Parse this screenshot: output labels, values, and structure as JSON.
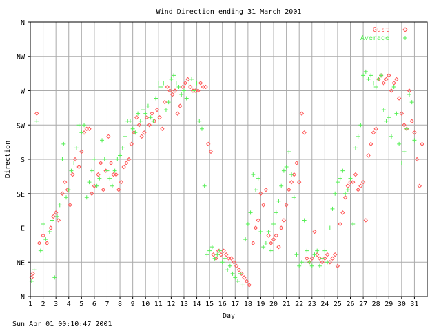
{
  "footer_timestamp": "Sun Apr 01 00:10:47 2001",
  "chart_data": {
    "type": "scatter",
    "title": "Wind Direction ending 31 March 2001",
    "xlabel": "Day",
    "ylabel": "Direction",
    "xlim": [
      1,
      32
    ],
    "ylim": [
      0,
      360
    ],
    "x_ticks": [
      "1",
      "2",
      "3",
      "4",
      "5",
      "6",
      "7",
      "8",
      "9",
      "10",
      "11",
      "12",
      "13",
      "14",
      "15",
      "16",
      "17",
      "18",
      "19",
      "20",
      "21",
      "22",
      "23",
      "24",
      "25",
      "26",
      "27",
      "28",
      "29",
      "30",
      "31"
    ],
    "y_ticks": [
      {
        "label": "N",
        "value": 0
      },
      {
        "label": "NE",
        "value": 45
      },
      {
        "label": "E",
        "value": 90
      },
      {
        "label": "SE",
        "value": 135
      },
      {
        "label": "S",
        "value": 180
      },
      {
        "label": "SW",
        "value": 225
      },
      {
        "label": "W",
        "value": 270
      },
      {
        "label": "NW",
        "value": 315
      },
      {
        "label": "N",
        "value": 360
      }
    ],
    "grid": true,
    "legend_position": "top-right",
    "colors": {
      "gust": "#ff5555",
      "average": "#55ee55",
      "grid": "#aaaaaa",
      "axis": "#000000"
    },
    "series": [
      {
        "name": "Gust",
        "marker": "diamond",
        "color": "#ff5555",
        "points": [
          [
            1.1,
            25
          ],
          [
            1.2,
            30
          ],
          [
            1.5,
            240
          ],
          [
            1.7,
            70
          ],
          [
            2.0,
            80
          ],
          [
            2.3,
            70
          ],
          [
            2.6,
            90
          ],
          [
            2.8,
            105
          ],
          [
            3.0,
            110
          ],
          [
            3.2,
            100
          ],
          [
            3.5,
            135
          ],
          [
            3.7,
            150
          ],
          [
            3.9,
            140
          ],
          [
            4.1,
            120
          ],
          [
            4.3,
            160
          ],
          [
            4.5,
            180
          ],
          [
            4.8,
            170
          ],
          [
            5.0,
            190
          ],
          [
            5.2,
            215
          ],
          [
            5.4,
            220
          ],
          [
            5.6,
            220
          ],
          [
            5.8,
            135
          ],
          [
            6.0,
            145
          ],
          [
            6.3,
            160
          ],
          [
            6.5,
            175
          ],
          [
            6.7,
            140
          ],
          [
            6.9,
            165
          ],
          [
            7.1,
            210
          ],
          [
            7.3,
            175
          ],
          [
            7.5,
            160
          ],
          [
            7.7,
            160
          ],
          [
            7.9,
            140
          ],
          [
            8.1,
            150
          ],
          [
            8.3,
            170
          ],
          [
            8.5,
            175
          ],
          [
            8.7,
            180
          ],
          [
            8.9,
            200
          ],
          [
            9.1,
            215
          ],
          [
            9.3,
            235
          ],
          [
            9.5,
            225
          ],
          [
            9.7,
            210
          ],
          [
            9.9,
            215
          ],
          [
            10.1,
            235
          ],
          [
            10.3,
            225
          ],
          [
            10.5,
            240
          ],
          [
            10.7,
            230
          ],
          [
            10.9,
            245
          ],
          [
            11.1,
            235
          ],
          [
            11.3,
            220
          ],
          [
            11.5,
            255
          ],
          [
            11.7,
            275
          ],
          [
            11.9,
            270
          ],
          [
            12.1,
            265
          ],
          [
            12.3,
            270
          ],
          [
            12.5,
            240
          ],
          [
            12.7,
            250
          ],
          [
            12.9,
            275
          ],
          [
            13.1,
            280
          ],
          [
            13.3,
            285
          ],
          [
            13.5,
            275
          ],
          [
            13.7,
            270
          ],
          [
            13.9,
            270
          ],
          [
            14.1,
            270
          ],
          [
            14.3,
            280
          ],
          [
            14.5,
            275
          ],
          [
            14.7,
            275
          ],
          [
            14.9,
            200
          ],
          [
            15.1,
            190
          ],
          [
            15.3,
            55
          ],
          [
            15.5,
            50
          ],
          [
            15.7,
            60
          ],
          [
            15.9,
            55
          ],
          [
            16.1,
            60
          ],
          [
            16.3,
            55
          ],
          [
            16.5,
            50
          ],
          [
            16.7,
            50
          ],
          [
            16.9,
            45
          ],
          [
            17.1,
            40
          ],
          [
            17.3,
            35
          ],
          [
            17.5,
            30
          ],
          [
            17.7,
            25
          ],
          [
            17.9,
            20
          ],
          [
            18.1,
            15
          ],
          [
            18.4,
            70
          ],
          [
            18.6,
            90
          ],
          [
            18.8,
            100
          ],
          [
            19.0,
            135
          ],
          [
            19.2,
            120
          ],
          [
            19.4,
            140
          ],
          [
            19.6,
            80
          ],
          [
            19.8,
            70
          ],
          [
            20.0,
            75
          ],
          [
            20.2,
            80
          ],
          [
            20.4,
            65
          ],
          [
            20.6,
            90
          ],
          [
            20.8,
            100
          ],
          [
            21.0,
            120
          ],
          [
            21.2,
            140
          ],
          [
            21.4,
            150
          ],
          [
            21.6,
            160
          ],
          [
            21.8,
            175
          ],
          [
            22.0,
            150
          ],
          [
            22.2,
            240
          ],
          [
            22.4,
            215
          ],
          [
            22.6,
            50
          ],
          [
            22.8,
            45
          ],
          [
            23.0,
            50
          ],
          [
            23.2,
            85
          ],
          [
            23.4,
            55
          ],
          [
            23.6,
            50
          ],
          [
            23.8,
            45
          ],
          [
            24.0,
            50
          ],
          [
            24.2,
            55
          ],
          [
            24.4,
            45
          ],
          [
            24.6,
            50
          ],
          [
            24.8,
            55
          ],
          [
            25.0,
            40
          ],
          [
            25.2,
            95
          ],
          [
            25.4,
            110
          ],
          [
            25.6,
            130
          ],
          [
            25.8,
            145
          ],
          [
            26.0,
            150
          ],
          [
            26.2,
            150
          ],
          [
            26.4,
            160
          ],
          [
            26.6,
            140
          ],
          [
            26.8,
            145
          ],
          [
            27.0,
            150
          ],
          [
            27.2,
            100
          ],
          [
            27.4,
            185
          ],
          [
            27.6,
            200
          ],
          [
            27.8,
            215
          ],
          [
            28.0,
            220
          ],
          [
            28.2,
            285
          ],
          [
            28.4,
            290
          ],
          [
            28.6,
            280
          ],
          [
            28.8,
            285
          ],
          [
            29.0,
            290
          ],
          [
            29.2,
            270
          ],
          [
            29.4,
            280
          ],
          [
            29.6,
            285
          ],
          [
            29.8,
            260
          ],
          [
            30.0,
            240
          ],
          [
            30.2,
            225
          ],
          [
            30.4,
            220
          ],
          [
            30.6,
            270
          ],
          [
            30.8,
            230
          ],
          [
            31.0,
            215
          ],
          [
            31.2,
            180
          ],
          [
            31.4,
            145
          ],
          [
            31.6,
            200
          ]
        ]
      },
      {
        "name": "Average",
        "marker": "plus",
        "color": "#55ee55",
        "points": [
          [
            1.1,
            20
          ],
          [
            1.3,
            35
          ],
          [
            1.5,
            230
          ],
          [
            1.8,
            60
          ],
          [
            2.0,
            95
          ],
          [
            2.2,
            75
          ],
          [
            2.5,
            85
          ],
          [
            2.7,
            100
          ],
          [
            2.9,
            25
          ],
          [
            3.1,
            105
          ],
          [
            3.3,
            120
          ],
          [
            3.5,
            180
          ],
          [
            3.6,
            200
          ],
          [
            3.8,
            130
          ],
          [
            4.0,
            140
          ],
          [
            4.2,
            165
          ],
          [
            4.4,
            175
          ],
          [
            4.6,
            195
          ],
          [
            4.8,
            225
          ],
          [
            5.0,
            215
          ],
          [
            5.2,
            225
          ],
          [
            5.4,
            130
          ],
          [
            5.6,
            150
          ],
          [
            5.8,
            165
          ],
          [
            6.0,
            180
          ],
          [
            6.2,
            145
          ],
          [
            6.4,
            155
          ],
          [
            6.6,
            205
          ],
          [
            6.8,
            180
          ],
          [
            7.0,
            165
          ],
          [
            7.2,
            155
          ],
          [
            7.4,
            145
          ],
          [
            7.6,
            165
          ],
          [
            7.8,
            180
          ],
          [
            8.0,
            185
          ],
          [
            8.2,
            195
          ],
          [
            8.4,
            210
          ],
          [
            8.6,
            230
          ],
          [
            8.8,
            230
          ],
          [
            9.0,
            220
          ],
          [
            9.2,
            215
          ],
          [
            9.4,
            240
          ],
          [
            9.6,
            230
          ],
          [
            9.8,
            245
          ],
          [
            10.0,
            240
          ],
          [
            10.2,
            250
          ],
          [
            10.4,
            235
          ],
          [
            10.6,
            230
          ],
          [
            10.8,
            260
          ],
          [
            11.0,
            280
          ],
          [
            11.2,
            275
          ],
          [
            11.4,
            280
          ],
          [
            11.6,
            245
          ],
          [
            11.8,
            255
          ],
          [
            12.0,
            285
          ],
          [
            12.2,
            290
          ],
          [
            12.4,
            280
          ],
          [
            12.6,
            275
          ],
          [
            12.8,
            265
          ],
          [
            13.0,
            270
          ],
          [
            13.2,
            260
          ],
          [
            13.4,
            280
          ],
          [
            13.6,
            285
          ],
          [
            13.8,
            270
          ],
          [
            14.0,
            280
          ],
          [
            14.2,
            230
          ],
          [
            14.4,
            220
          ],
          [
            14.6,
            145
          ],
          [
            14.8,
            55
          ],
          [
            15.0,
            60
          ],
          [
            15.2,
            65
          ],
          [
            15.4,
            50
          ],
          [
            15.6,
            55
          ],
          [
            15.8,
            60
          ],
          [
            16.0,
            45
          ],
          [
            16.2,
            50
          ],
          [
            16.4,
            35
          ],
          [
            16.6,
            40
          ],
          [
            16.8,
            30
          ],
          [
            17.0,
            25
          ],
          [
            17.2,
            20
          ],
          [
            17.4,
            30
          ],
          [
            17.6,
            15
          ],
          [
            17.8,
            75
          ],
          [
            18.0,
            95
          ],
          [
            18.2,
            110
          ],
          [
            18.4,
            160
          ],
          [
            18.6,
            140
          ],
          [
            18.8,
            155
          ],
          [
            19.0,
            85
          ],
          [
            19.2,
            65
          ],
          [
            19.4,
            70
          ],
          [
            19.6,
            85
          ],
          [
            19.8,
            60
          ],
          [
            20.0,
            95
          ],
          [
            20.2,
            110
          ],
          [
            20.4,
            125
          ],
          [
            20.6,
            145
          ],
          [
            20.8,
            165
          ],
          [
            21.0,
            170
          ],
          [
            21.2,
            190
          ],
          [
            21.4,
            160
          ],
          [
            21.6,
            130
          ],
          [
            21.8,
            55
          ],
          [
            22.0,
            40
          ],
          [
            22.2,
            45
          ],
          [
            22.4,
            100
          ],
          [
            22.6,
            60
          ],
          [
            22.8,
            45
          ],
          [
            23.0,
            40
          ],
          [
            23.2,
            55
          ],
          [
            23.4,
            60
          ],
          [
            23.6,
            40
          ],
          [
            23.8,
            50
          ],
          [
            24.0,
            60
          ],
          [
            24.2,
            45
          ],
          [
            24.4,
            90
          ],
          [
            24.6,
            115
          ],
          [
            24.8,
            135
          ],
          [
            25.0,
            150
          ],
          [
            25.2,
            155
          ],
          [
            25.4,
            165
          ],
          [
            25.6,
            135
          ],
          [
            25.8,
            140
          ],
          [
            26.0,
            155
          ],
          [
            26.2,
            95
          ],
          [
            26.4,
            195
          ],
          [
            26.6,
            210
          ],
          [
            26.8,
            225
          ],
          [
            27.0,
            290
          ],
          [
            27.2,
            295
          ],
          [
            27.4,
            285
          ],
          [
            27.6,
            290
          ],
          [
            27.8,
            280
          ],
          [
            28.0,
            275
          ],
          [
            28.2,
            285
          ],
          [
            28.4,
            290
          ],
          [
            28.6,
            245
          ],
          [
            28.8,
            230
          ],
          [
            29.0,
            235
          ],
          [
            29.2,
            210
          ],
          [
            29.4,
            275
          ],
          [
            29.6,
            240
          ],
          [
            29.8,
            200
          ],
          [
            30.0,
            175
          ],
          [
            30.2,
            190
          ],
          [
            30.4,
            220
          ],
          [
            30.6,
            265
          ],
          [
            30.8,
            255
          ],
          [
            31.0,
            205
          ]
        ]
      }
    ]
  }
}
